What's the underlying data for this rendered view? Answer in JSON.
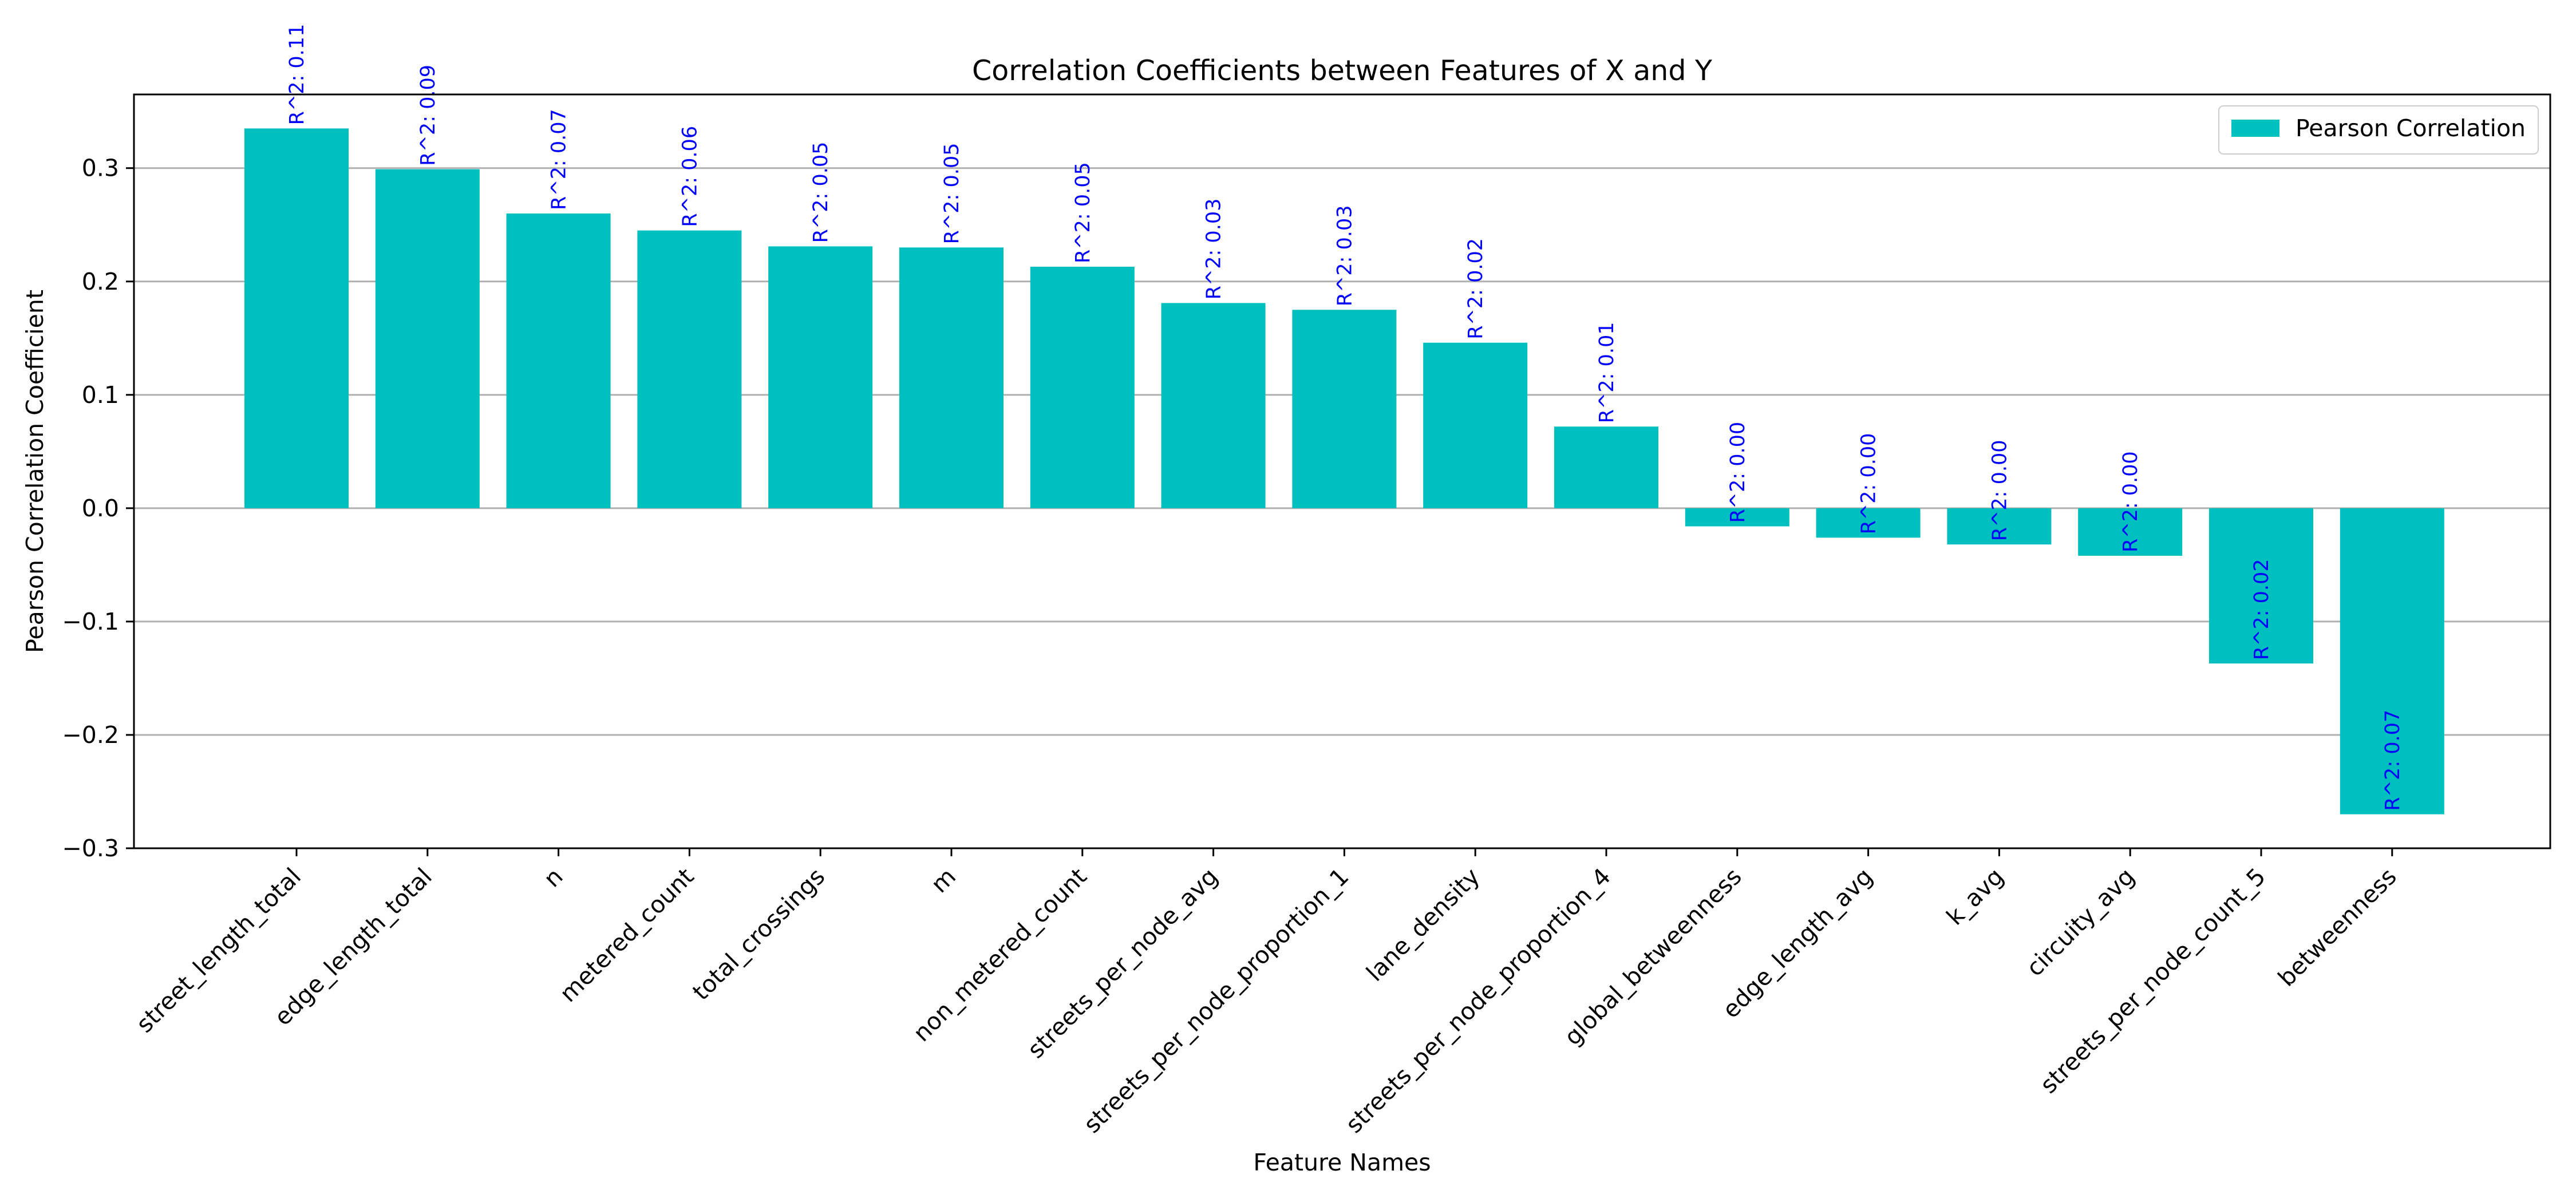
{
  "chart_data": {
    "type": "bar",
    "title": "Correlation Coefficients between Features of X and Y",
    "xlabel": "Feature Names",
    "ylabel": "Pearson Correlation Coefficient",
    "ylim": [
      -0.3,
      0.365
    ],
    "yticks": [
      -0.3,
      -0.2,
      -0.1,
      0.0,
      0.1,
      0.2,
      0.3
    ],
    "ytick_labels": [
      "−0.3",
      "−0.2",
      "−0.1",
      "0.0",
      "0.1",
      "0.2",
      "0.3"
    ],
    "grid": "horizontal",
    "legend_position": "top-right",
    "categories": [
      "street_length_total",
      "edge_length_total",
      "n",
      "metered_count",
      "total_crossings",
      "m",
      "non_metered_count",
      "streets_per_node_avg",
      "streets_per_node_proportion_1",
      "lane_density",
      "streets_per_node_proportion_4",
      "global_betweenness",
      "edge_length_avg",
      "k_avg",
      "circuity_avg",
      "streets_per_node_count_5",
      "betweenness"
    ],
    "series": [
      {
        "name": "Pearson Correlation",
        "color": "#00bfbf",
        "values": [
          0.335,
          0.299,
          0.26,
          0.245,
          0.231,
          0.23,
          0.213,
          0.181,
          0.175,
          0.146,
          0.072,
          -0.016,
          -0.026,
          -0.032,
          -0.042,
          -0.137,
          -0.27
        ]
      }
    ],
    "annotations": [
      "R^2: 0.11",
      "R^2: 0.09",
      "R^2: 0.07",
      "R^2: 0.06",
      "R^2: 0.05",
      "R^2: 0.05",
      "R^2: 0.05",
      "R^2: 0.03",
      "R^2: 0.03",
      "R^2: 0.02",
      "R^2: 0.01",
      "R^2: 0.00",
      "R^2: 0.00",
      "R^2: 0.00",
      "R^2: 0.00",
      "R^2: 0.02",
      "R^2: 0.07"
    ],
    "annotation_color": "#0000ff"
  }
}
